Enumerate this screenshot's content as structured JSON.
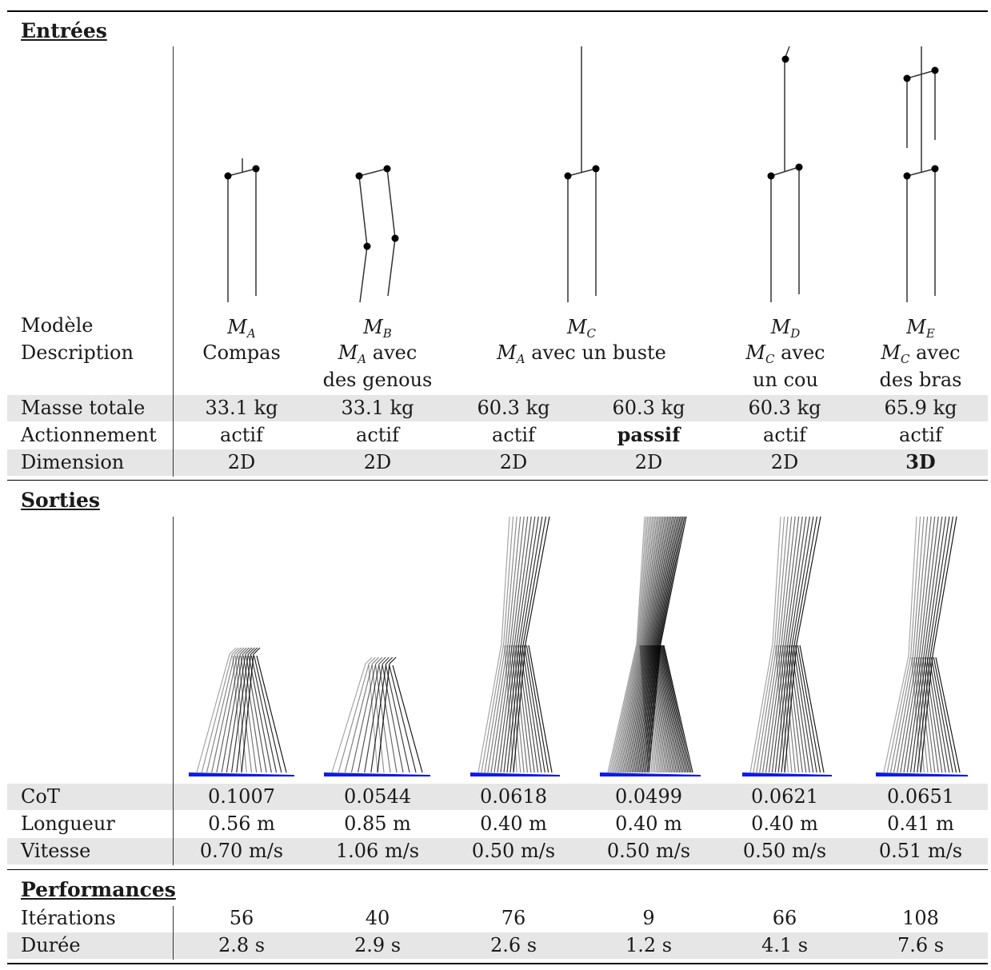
{
  "sections": {
    "inputs": "Entrées",
    "outputs": "Sorties",
    "performance": "Performances"
  },
  "row_labels": {
    "model": "Modèle",
    "description": "Description",
    "mass": "Masse totale",
    "actuation": "Actionnement",
    "dimension": "Dimension",
    "cot": "CoT",
    "length": "Longueur",
    "speed": "Vitesse",
    "iterations": "Itérations",
    "duration": "Durée"
  },
  "models": [
    {
      "symbol": "M",
      "sub": "A",
      "desc": [
        "Compas"
      ]
    },
    {
      "symbol": "M",
      "sub": "B",
      "desc": [
        "avec",
        "des genous"
      ],
      "desc_math_sub": "A"
    },
    {
      "symbol": "M",
      "sub": "C",
      "desc": [
        "avec un buste"
      ],
      "desc_math_sub": "A"
    },
    {
      "symbol": "M",
      "sub": "D",
      "desc": [
        "avec",
        "un cou"
      ],
      "desc_math_sub": "C"
    },
    {
      "symbol": "M",
      "sub": "E",
      "desc": [
        "avec",
        "des bras"
      ],
      "desc_math_sub": "C"
    }
  ],
  "columns": [
    {
      "mass": "33.1 kg",
      "actuation": "actif",
      "dimension": "2D",
      "cot": "0.1007",
      "length": "0.56 m",
      "speed": "0.70 m/s",
      "iterations": "56",
      "duration": "2.8 s"
    },
    {
      "mass": "33.1 kg",
      "actuation": "actif",
      "dimension": "2D",
      "cot": "0.0544",
      "length": "0.85 m",
      "speed": "1.06 m/s",
      "iterations": "40",
      "duration": "2.9 s"
    },
    {
      "mass": "60.3 kg",
      "actuation": "actif",
      "dimension": "2D",
      "cot": "0.0618",
      "length": "0.40 m",
      "speed": "0.50 m/s",
      "iterations": "76",
      "duration": "2.6 s"
    },
    {
      "mass": "60.3 kg",
      "actuation": "passif",
      "dimension": "2D",
      "cot": "0.0499",
      "length": "0.40 m",
      "speed": "0.50 m/s",
      "iterations": "9",
      "duration": "1.2 s"
    },
    {
      "mass": "60.3 kg",
      "actuation": "actif",
      "dimension": "2D",
      "cot": "0.0621",
      "length": "0.40 m",
      "speed": "0.50 m/s",
      "iterations": "66",
      "duration": "4.1 s"
    },
    {
      "mass": "65.9 kg",
      "actuation": "actif",
      "dimension": "3D",
      "cot": "0.0651",
      "length": "0.41 m",
      "speed": "0.51 m/s",
      "iterations": "108",
      "duration": "7.6 s"
    }
  ],
  "colors": {
    "shade": "#e6e6e6",
    "ground": "#0a1de0",
    "ink": "#1a1a1a"
  }
}
